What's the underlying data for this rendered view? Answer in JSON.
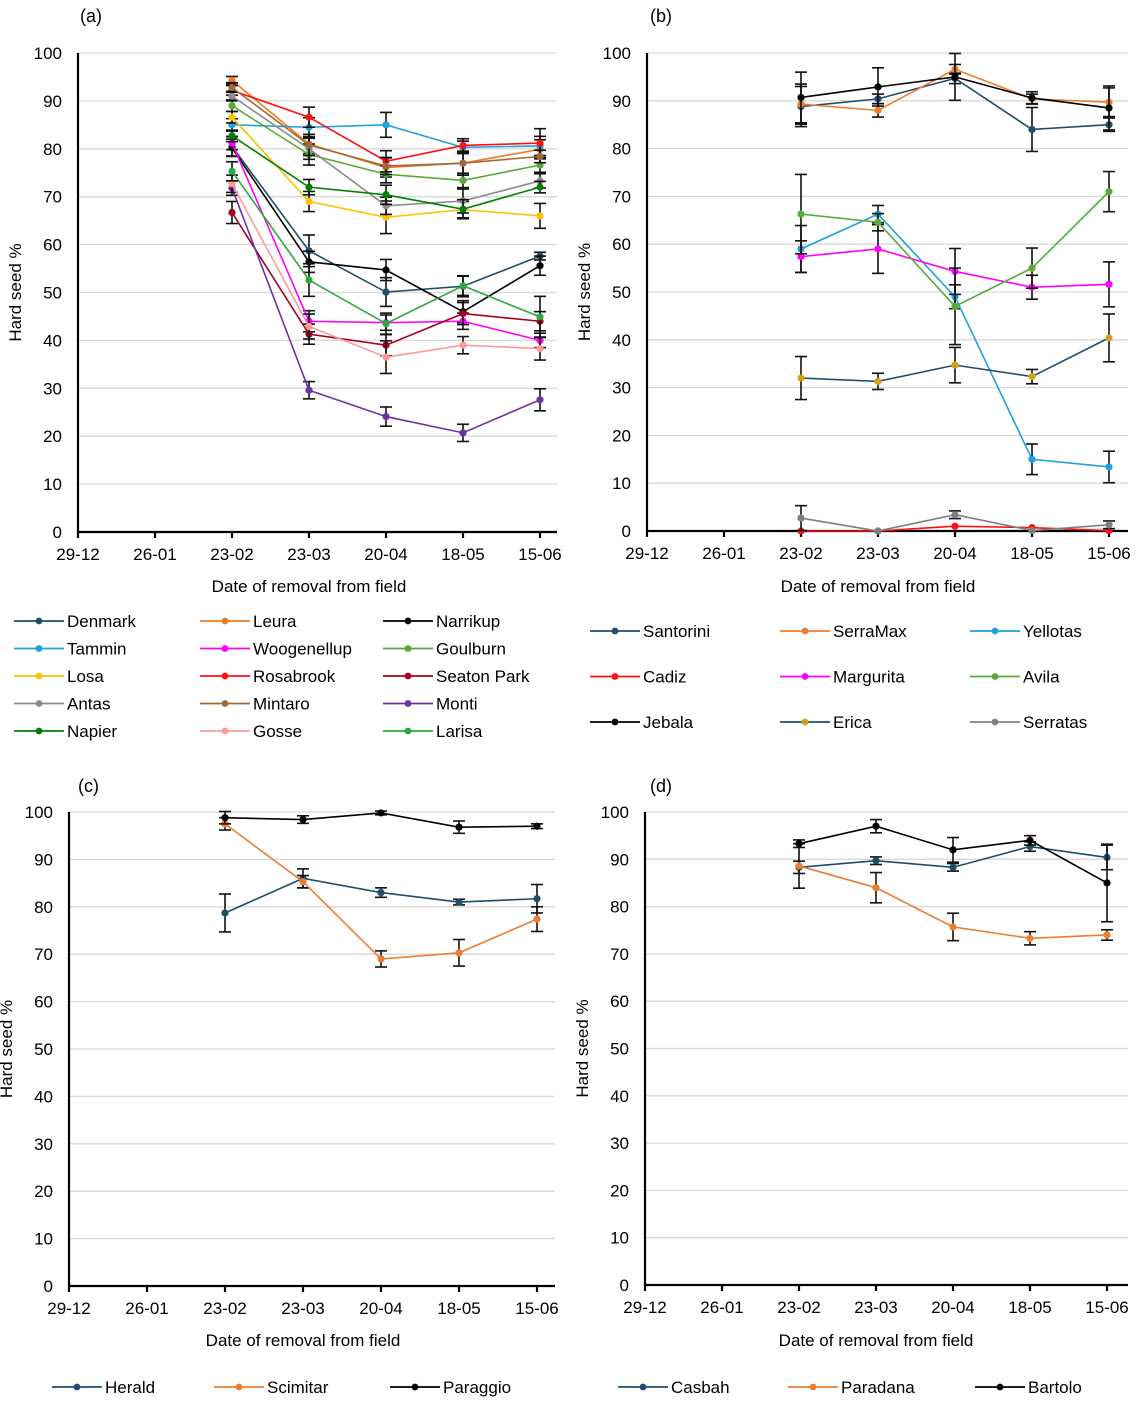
{
  "chart_data": [
    {
      "id": "a",
      "type": "line",
      "panel_label": "(a)",
      "title": "",
      "xlabel": "Date of removal from field",
      "ylabel": "Hard seed %",
      "ylim": [
        0,
        100
      ],
      "yticks": [
        0,
        10,
        20,
        30,
        40,
        50,
        60,
        70,
        80,
        90,
        100
      ],
      "xticks": [
        "29-12",
        "26-01",
        "23-02",
        "23-03",
        "20-04",
        "18-05",
        "15-06"
      ],
      "grid": true,
      "legend_position": "bottom",
      "x": [
        "23-02",
        "23-03",
        "20-04",
        "18-05",
        "15-06"
      ],
      "series": [
        {
          "name": "Denmark",
          "color": "#1f4e6b",
          "values": [
            80.5,
            58.7,
            50.1,
            51.3,
            57.6
          ],
          "err": [
            2.0,
            3.3,
            3.0,
            2.2,
            0.8
          ]
        },
        {
          "name": "Leura",
          "color": "#f07a1e",
          "values": [
            94.3,
            81.0,
            76.1,
            77.0,
            79.9
          ],
          "err": [
            0.8,
            2.0,
            2.0,
            2.5,
            2.0
          ]
        },
        {
          "name": "Narrikup",
          "color": "#000000",
          "values": [
            80.2,
            56.4,
            54.7,
            46.0,
            55.6
          ],
          "err": [
            1.8,
            2.2,
            2.2,
            2.3,
            2.0
          ]
        },
        {
          "name": "Tammin",
          "color": "#1fa1dc",
          "values": [
            85.0,
            84.5,
            85.0,
            80.3,
            80.6
          ],
          "err": [
            1.3,
            2.0,
            2.6,
            1.3,
            2.0
          ]
        },
        {
          "name": "Woogenellup",
          "color": "#ff00ff",
          "values": [
            81.2,
            44.0,
            43.7,
            44.0,
            40.0
          ],
          "err": [
            1.4,
            2.2,
            1.6,
            1.7,
            1.5
          ]
        },
        {
          "name": "Goulburn",
          "color": "#5aaa3a",
          "values": [
            89.0,
            78.8,
            74.7,
            73.4,
            76.6
          ],
          "err": [
            1.2,
            2.2,
            1.8,
            1.5,
            1.5
          ]
        },
        {
          "name": "Losa",
          "color": "#ffc000",
          "values": [
            86.6,
            69.0,
            65.7,
            67.3,
            66.0
          ],
          "err": [
            1.2,
            2.1,
            3.4,
            1.7,
            2.6
          ]
        },
        {
          "name": "Rosabrook",
          "color": "#ff1010",
          "values": [
            92.2,
            86.6,
            77.4,
            80.7,
            81.2
          ],
          "err": [
            1.0,
            2.1,
            2.2,
            1.4,
            3.0
          ]
        },
        {
          "name": "Seaton Park",
          "color": "#a50021",
          "values": [
            66.7,
            41.3,
            39.0,
            45.6,
            44.0
          ],
          "err": [
            2.3,
            2.1,
            2.2,
            2.3,
            2.0
          ]
        },
        {
          "name": "Antas",
          "color": "#8c8c8c",
          "values": [
            91.0,
            80.0,
            68.1,
            69.1,
            73.3
          ],
          "err": [
            1.0,
            2.2,
            1.8,
            2.5,
            1.5
          ]
        },
        {
          "name": "Mintaro",
          "color": "#a0693a",
          "values": [
            92.8,
            80.8,
            76.4,
            77.0,
            78.4
          ],
          "err": [
            1.0,
            2.2,
            1.8,
            2.5,
            1.3
          ]
        },
        {
          "name": "Monti",
          "color": "#7030a0",
          "values": [
            71.8,
            29.6,
            24.1,
            20.7,
            27.6
          ],
          "err": [
            1.5,
            1.8,
            2.0,
            1.8,
            2.3
          ]
        },
        {
          "name": "Napier",
          "color": "#008000",
          "values": [
            82.7,
            72.0,
            70.4,
            67.4,
            72.0
          ],
          "err": [
            1.2,
            1.6,
            2.0,
            2.0,
            1.2
          ]
        },
        {
          "name": "Gosse",
          "color": "#ff9999",
          "values": [
            72.7,
            42.9,
            36.5,
            39.0,
            38.3
          ],
          "err": [
            1.8,
            2.6,
            3.4,
            1.8,
            2.4
          ]
        },
        {
          "name": "Larisa",
          "color": "#2ca83c",
          "values": [
            75.3,
            52.6,
            43.5,
            51.4,
            44.9
          ],
          "err": [
            2.0,
            3.4,
            2.2,
            2.0,
            4.3
          ]
        }
      ]
    },
    {
      "id": "b",
      "type": "line",
      "panel_label": "(b)",
      "title": "",
      "xlabel": "Date of removal from field",
      "ylabel": "Hard seed %",
      "ylim": [
        0,
        100
      ],
      "yticks": [
        0,
        10,
        20,
        30,
        40,
        50,
        60,
        70,
        80,
        90,
        100
      ],
      "xticks": [
        "29-12",
        "26-01",
        "23-02",
        "23-03",
        "20-04",
        "18-05",
        "15-06"
      ],
      "grid": true,
      "legend_position": "bottom",
      "x": [
        "23-02",
        "23-03",
        "20-04",
        "18-05",
        "15-06"
      ],
      "series": [
        {
          "name": "Santorini",
          "color": "#1f4e6b",
          "marker": "#1f4e6b",
          "values": [
            88.8,
            90.4,
            94.7,
            84.0,
            85.0
          ],
          "err": [
            4.2,
            1.0,
            1.1,
            4.6,
            1.4
          ]
        },
        {
          "name": "SerraMax",
          "color": "#ed7d31",
          "marker": "#ed7d31",
          "values": [
            89.3,
            88.0,
            96.6,
            90.4,
            89.7
          ],
          "err": [
            4.2,
            1.4,
            1.0,
            1.0,
            3.0
          ]
        },
        {
          "name": "Yellotas",
          "color": "#1fa1dc",
          "marker": "#1fa1dc",
          "values": [
            59.0,
            66.3,
            49.0,
            15.0,
            13.4
          ],
          "err": [
            4.9,
            1.8,
            2.5,
            3.2,
            3.3
          ]
        },
        {
          "name": "Cadiz",
          "color": "#ff1010",
          "marker": "#ff1010",
          "values": [
            0.0,
            0.0,
            1.0,
            0.7,
            0.1
          ],
          "err": [
            0,
            0,
            0,
            0,
            0
          ]
        },
        {
          "name": "Margurita",
          "color": "#ff00ff",
          "marker": "#ff00ff",
          "values": [
            57.4,
            59.0,
            54.3,
            51.0,
            51.6
          ],
          "err": [
            3.3,
            5.1,
            4.8,
            2.5,
            4.7
          ]
        },
        {
          "name": "Avila",
          "color": "#5aaa3a",
          "marker": "#5aaa3a",
          "values": [
            66.3,
            64.6,
            47.0,
            55.0,
            71.0
          ],
          "err": [
            8.3,
            1.8,
            8.0,
            4.2,
            4.2
          ]
        },
        {
          "name": "Jebala",
          "color": "#000000",
          "marker": "#000000",
          "values": [
            90.7,
            92.9,
            95.0,
            90.6,
            88.5
          ],
          "err": [
            5.3,
            4.0,
            4.9,
            1.3,
            4.6
          ]
        },
        {
          "name": "Erica",
          "color": "#1f4e6b",
          "marker": "#d4a017",
          "values": [
            32.0,
            31.3,
            34.7,
            32.3,
            40.4
          ],
          "err": [
            4.5,
            1.7,
            3.7,
            1.5,
            5.0
          ]
        },
        {
          "name": "Serratas",
          "color": "#7f7f7f",
          "marker": "#7f7f7f",
          "values": [
            2.7,
            0.0,
            3.4,
            0.1,
            1.3
          ],
          "err": [
            2.6,
            0,
            0.8,
            0,
            0.8
          ]
        }
      ]
    },
    {
      "id": "c",
      "type": "line",
      "panel_label": "(c)",
      "title": "",
      "xlabel": "Date of removal from field",
      "ylabel": "Hard seed %",
      "ylim": [
        0,
        100
      ],
      "yticks": [
        0,
        10,
        20,
        30,
        40,
        50,
        60,
        70,
        80,
        90,
        100
      ],
      "xticks": [
        "29-12",
        "26-01",
        "23-02",
        "23-03",
        "20-04",
        "18-05",
        "15-06"
      ],
      "grid": true,
      "legend_position": "bottom",
      "x": [
        "23-02",
        "23-03",
        "20-04",
        "18-05",
        "15-06"
      ],
      "series": [
        {
          "name": "Herald",
          "color": "#1f4e6b",
          "marker": "#1f4e6b",
          "values": [
            78.7,
            86.0,
            83.0,
            81.0,
            81.7
          ],
          "err": [
            4.0,
            2.0,
            1.0,
            0.6,
            3.0
          ]
        },
        {
          "name": "Scimitar",
          "color": "#ed7d31",
          "marker": "#ed7d31",
          "values": [
            97.5,
            85.3,
            69.0,
            70.3,
            77.4
          ],
          "err": [
            1.3,
            1.3,
            1.7,
            2.8,
            2.6
          ]
        },
        {
          "name": "Paraggio",
          "color": "#000000",
          "marker": "#000000",
          "values": [
            98.8,
            98.4,
            99.8,
            96.8,
            97.0
          ],
          "err": [
            1.3,
            0.8,
            0.4,
            1.3,
            0.5
          ]
        }
      ]
    },
    {
      "id": "d",
      "type": "line",
      "panel_label": "(d)",
      "title": "",
      "xlabel": "Date of removal from field",
      "ylabel": "Hard seed %",
      "ylim": [
        0,
        100
      ],
      "yticks": [
        0,
        10,
        20,
        30,
        40,
        50,
        60,
        70,
        80,
        90,
        100
      ],
      "xticks": [
        "29-12",
        "26-01",
        "23-02",
        "23-03",
        "20-04",
        "18-05",
        "15-06"
      ],
      "grid": true,
      "legend_position": "bottom",
      "x": [
        "23-02",
        "23-03",
        "20-04",
        "18-05",
        "15-06"
      ],
      "series": [
        {
          "name": "Casbah",
          "color": "#1f4e6b",
          "marker": "#1f4e6b",
          "values": [
            88.3,
            89.7,
            88.3,
            92.7,
            90.4
          ],
          "err": [
            1.3,
            0.8,
            0.8,
            1.0,
            2.6
          ]
        },
        {
          "name": "Paradana",
          "color": "#ed7d31",
          "marker": "#ed7d31",
          "values": [
            88.6,
            84.0,
            75.7,
            73.3,
            74.0
          ],
          "err": [
            4.7,
            3.2,
            2.9,
            1.4,
            1.1
          ]
        },
        {
          "name": "Bartolo",
          "color": "#000000",
          "marker": "#000000",
          "values": [
            93.3,
            97.0,
            92.0,
            94.0,
            85.0
          ],
          "err": [
            0.8,
            1.4,
            2.6,
            1.0,
            8.2
          ]
        }
      ]
    }
  ]
}
